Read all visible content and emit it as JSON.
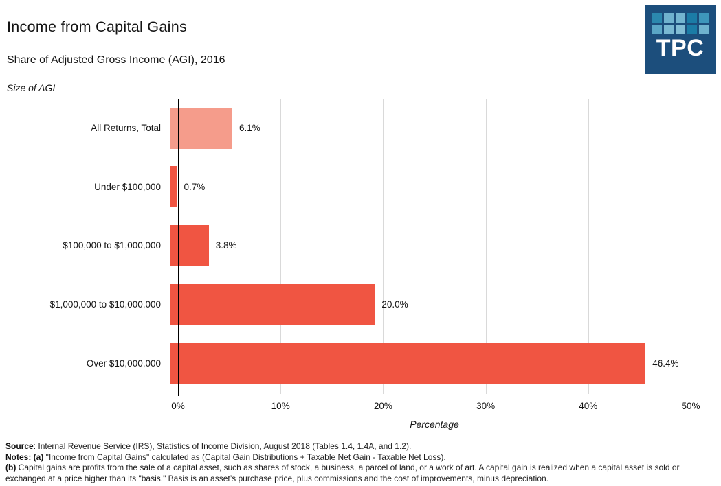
{
  "header": {
    "title": "Income from Capital Gains",
    "subtitle": "Share of Adjusted Gross Income (AGI), 2016"
  },
  "logo": {
    "text": "TPC",
    "bg": "#1C4E7C",
    "squares": [
      [
        "#2B88AE",
        "#6FB2CE",
        "#74B5D0",
        "#1B7CA6",
        "#3E96BB"
      ],
      [
        "#5AA6C6",
        "#79B8D2",
        "#82BDD5",
        "#1B7CA6",
        "#6FB2CE"
      ]
    ]
  },
  "chart_data": {
    "type": "bar",
    "orientation": "horizontal",
    "axis_title": "Size of AGI",
    "xlabel": "Percentage",
    "categories": [
      "All Returns, Total",
      "Under $100,000",
      "$100,000 to $1,000,000",
      "$1,000,000 to $10,000,000",
      "Over $10,000,000"
    ],
    "values": [
      6.1,
      0.7,
      3.8,
      20.0,
      46.4
    ],
    "value_labels": [
      "6.1%",
      "0.7%",
      "3.8%",
      "20.0%",
      "46.4%"
    ],
    "bar_colors": [
      "#F59C8B",
      "#F05542",
      "#F05542",
      "#F05542",
      "#F05542"
    ],
    "x_ticks": [
      "0%",
      "10%",
      "20%",
      "30%",
      "40%",
      "50%"
    ],
    "x_tick_values": [
      0,
      10,
      20,
      30,
      40,
      50
    ],
    "xlim": [
      0,
      50
    ],
    "grid": true,
    "gridline_color": "#D9D9D9",
    "legend": "none"
  },
  "footer": {
    "source_label": "Source",
    "source_text": ": Internal Revenue Service (IRS), Statistics of Income Division, August 2018 (Tables 1.4, 1.4A, and 1.2).",
    "notes_label": "Notes: (a)",
    "notes_text": " \"Income from Capital Gains\" calculated as (Capital Gain Distributions + Taxable Net Gain - Taxable Net Loss).",
    "note_b_label": "(b)",
    "note_b_text": " Capital gains are profits from the sale of a capital asset, such as shares of stock, a business, a parcel of land, or a work of art. A capital gain is realized when a capital asset is sold or exchanged at a price higher than its \"basis.\" Basis is an asset’s purchase price, plus commissions and the cost of improvements, minus depreciation."
  },
  "colors": {
    "bar_red": "#F05542",
    "bar_salmon": "#F59C8B",
    "axis": "#000000",
    "gridline": "#D9D9D9",
    "logo_navy": "#1C4E7C"
  }
}
